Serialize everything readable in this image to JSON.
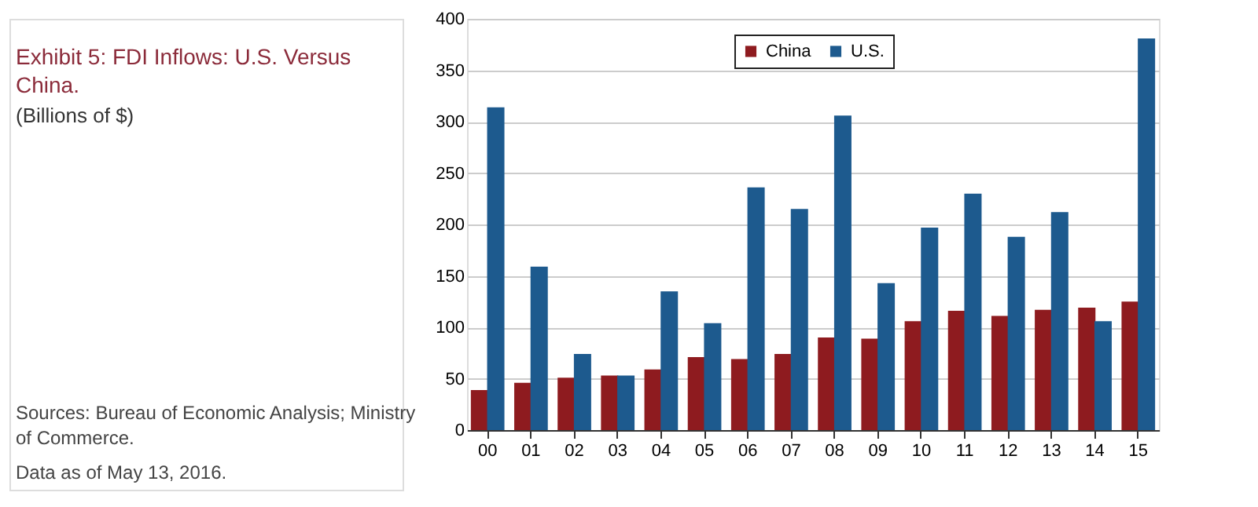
{
  "chart_data": {
    "type": "bar",
    "title": "Exhibit 5: FDI Inflows: U.S. Versus China.",
    "subtitle": "(Billions of $)",
    "annotations": [
      "Sources: Bureau of Economic Analysis; Ministry of Commerce.",
      "Data as of May 13, 2016."
    ],
    "categories": [
      "00",
      "01",
      "02",
      "03",
      "04",
      "05",
      "06",
      "07",
      "08",
      "09",
      "10",
      "11",
      "12",
      "13",
      "14",
      "15"
    ],
    "series": [
      {
        "name": "China",
        "color": "#8e1b1f",
        "values": [
          39,
          46,
          51,
          53,
          59,
          71,
          69,
          74,
          90,
          89,
          106,
          116,
          111,
          117,
          119,
          125
        ]
      },
      {
        "name": "U.S.",
        "color": "#1d5a8e",
        "values": [
          314,
          159,
          74,
          53,
          135,
          104,
          236,
          215,
          306,
          143,
          197,
          230,
          188,
          212,
          106,
          381
        ]
      }
    ],
    "ylim": [
      0,
      400
    ],
    "yticks": [
      0,
      50,
      100,
      150,
      200,
      250,
      300,
      350,
      400
    ],
    "grid": "y",
    "legend": "top"
  }
}
